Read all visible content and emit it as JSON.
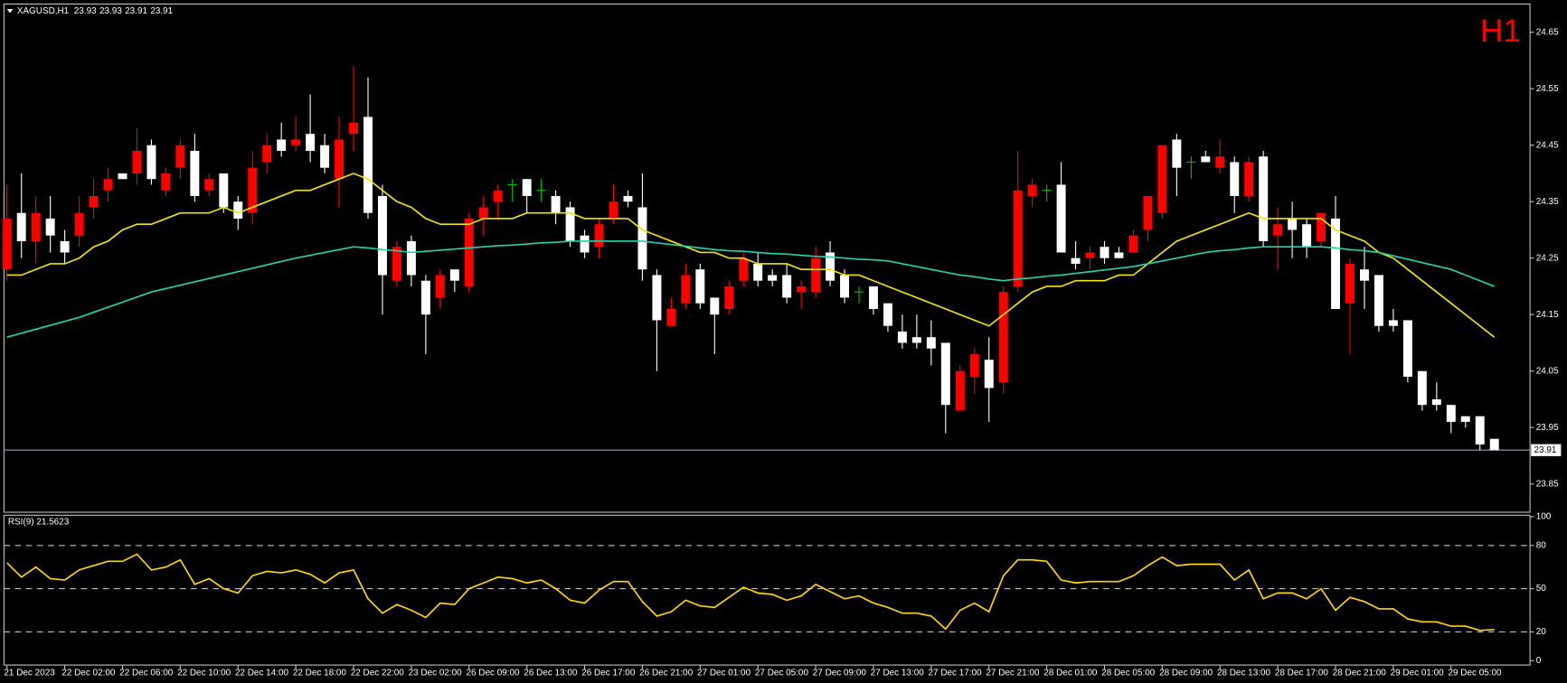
{
  "chart_data": [
    {
      "type": "candlestick",
      "title": "XAGUSD,H1",
      "timeframe": "H1",
      "header_ohlc": [
        23.93,
        23.93,
        23.91,
        23.91
      ],
      "categories": [
        "21 Dec 2023",
        null,
        null,
        null,
        "22 Dec 02:00",
        null,
        null,
        null,
        "22 Dec 06:00",
        null,
        null,
        null,
        "22 Dec 10:00",
        null,
        null,
        null,
        "22 Dec 14:00",
        null,
        null,
        null,
        "22 Dec 18:00",
        null,
        null,
        null,
        "22 Dec 22:00",
        null,
        null,
        null,
        "23 Dec 02:00",
        null,
        null,
        null,
        "26 Dec 09:00",
        null,
        null,
        null,
        "26 Dec 13:00",
        null,
        null,
        null,
        "26 Dec 17:00",
        null,
        null,
        null,
        "26 Dec 21:00",
        null,
        null,
        null,
        "27 Dec 01:00",
        null,
        null,
        null,
        "27 Dec 05:00",
        null,
        null,
        null,
        "27 Dec 09:00",
        null,
        null,
        null,
        "27 Dec 13:00",
        null,
        null,
        null,
        "27 Dec 17:00",
        null,
        null,
        null,
        "27 Dec 21:00",
        null,
        null,
        null,
        "28 Dec 01:00",
        null,
        null,
        null,
        "28 Dec 05:00",
        null,
        null,
        null,
        "28 Dec 09:00",
        null,
        null,
        null,
        "28 Dec 13:00",
        null,
        null,
        null,
        "28 Dec 17:00",
        null,
        null,
        null,
        "28 Dec 21:00",
        null,
        null,
        null,
        "29 Dec 01:00",
        null,
        null,
        null,
        "29 Dec 05:00",
        null,
        null,
        null
      ],
      "open": [
        24.23,
        24.33,
        24.28,
        24.32,
        24.28,
        24.29,
        24.34,
        24.37,
        24.4,
        24.4,
        24.45,
        24.37,
        24.41,
        24.44,
        24.37,
        24.4,
        24.35,
        24.33,
        24.42,
        24.46,
        24.45,
        24.47,
        24.45,
        24.39,
        24.47,
        24.5,
        24.36,
        24.21,
        24.28,
        24.21,
        24.18,
        24.23,
        24.2,
        24.32,
        24.35,
        24.38,
        24.39,
        24.37,
        24.36,
        24.34,
        24.29,
        24.27,
        24.32,
        24.36,
        24.34,
        24.22,
        24.13,
        24.17,
        24.23,
        24.18,
        24.16,
        24.21,
        24.24,
        24.22,
        24.22,
        24.19,
        24.19,
        24.26,
        24.22,
        24.19,
        24.2,
        24.17,
        24.12,
        24.11,
        24.11,
        24.1,
        23.98,
        24.04,
        24.07,
        24.03,
        24.2,
        24.36,
        24.37,
        24.38,
        24.25,
        24.25,
        24.27,
        24.26,
        24.26,
        24.3,
        24.33,
        24.46,
        24.42,
        24.43,
        24.41,
        24.42,
        24.36,
        24.43,
        24.29,
        24.32,
        24.31,
        24.28,
        24.32,
        24.17,
        24.23,
        24.22,
        24.14,
        24.14,
        24.05,
        24.0,
        23.99,
        23.97,
        23.97,
        23.93
      ],
      "high": [
        24.38,
        24.4,
        24.36,
        24.36,
        24.3,
        24.36,
        24.39,
        24.41,
        24.4,
        24.48,
        24.46,
        24.41,
        24.46,
        24.47,
        24.4,
        24.4,
        24.36,
        24.44,
        24.47,
        24.49,
        24.5,
        24.54,
        24.47,
        24.5,
        24.59,
        24.57,
        24.38,
        24.28,
        24.29,
        24.22,
        24.23,
        24.23,
        24.33,
        24.36,
        24.38,
        24.39,
        24.39,
        24.39,
        24.37,
        24.35,
        24.3,
        24.32,
        24.38,
        24.37,
        24.4,
        24.23,
        24.18,
        24.24,
        24.24,
        24.18,
        24.21,
        24.26,
        24.26,
        24.23,
        24.24,
        24.21,
        24.27,
        24.28,
        24.23,
        24.2,
        24.2,
        24.17,
        24.15,
        24.15,
        24.14,
        24.1,
        24.06,
        24.09,
        24.11,
        24.2,
        24.44,
        24.39,
        24.38,
        24.42,
        24.28,
        24.27,
        24.28,
        24.27,
        24.3,
        24.36,
        24.45,
        24.47,
        24.43,
        24.44,
        24.46,
        24.43,
        24.43,
        24.44,
        24.34,
        24.35,
        24.32,
        24.33,
        24.36,
        24.25,
        24.27,
        24.22,
        24.16,
        24.14,
        24.05,
        24.03,
        23.99,
        23.97,
        23.97,
        23.93
      ],
      "low": [
        24.21,
        24.25,
        24.24,
        24.26,
        24.24,
        24.27,
        24.32,
        24.35,
        24.39,
        24.38,
        24.38,
        24.36,
        24.39,
        24.35,
        24.36,
        24.33,
        24.3,
        24.31,
        24.4,
        24.43,
        24.44,
        24.42,
        24.4,
        24.34,
        24.44,
        24.32,
        24.15,
        24.2,
        24.2,
        24.08,
        24.16,
        24.19,
        24.19,
        24.29,
        24.32,
        24.35,
        24.33,
        24.35,
        24.31,
        24.27,
        24.25,
        24.25,
        24.31,
        24.34,
        24.21,
        24.05,
        24.13,
        24.16,
        24.16,
        24.08,
        24.15,
        24.2,
        24.2,
        24.2,
        24.17,
        24.16,
        24.18,
        24.2,
        24.17,
        24.17,
        24.15,
        24.12,
        24.09,
        24.09,
        24.06,
        23.94,
        23.98,
        24.01,
        23.96,
        24.01,
        24.19,
        24.34,
        24.35,
        24.26,
        24.23,
        24.23,
        24.24,
        24.25,
        24.26,
        24.28,
        24.32,
        24.36,
        24.39,
        24.42,
        24.4,
        24.33,
        24.35,
        24.27,
        24.23,
        24.25,
        24.25,
        24.27,
        24.16,
        24.08,
        24.16,
        24.12,
        24.12,
        24.03,
        23.98,
        23.98,
        23.94,
        23.95,
        23.91,
        23.91
      ],
      "close": [
        24.32,
        24.28,
        24.33,
        24.29,
        24.26,
        24.33,
        24.36,
        24.39,
        24.39,
        24.44,
        24.39,
        24.4,
        24.45,
        24.36,
        24.39,
        24.34,
        24.32,
        24.41,
        24.45,
        24.44,
        24.46,
        24.44,
        24.41,
        24.46,
        24.49,
        24.33,
        24.22,
        24.27,
        24.22,
        24.15,
        24.22,
        24.21,
        24.32,
        24.34,
        24.37,
        24.38,
        24.36,
        24.37,
        24.33,
        24.28,
        24.26,
        24.31,
        24.35,
        24.35,
        24.23,
        24.14,
        24.16,
        24.22,
        24.17,
        24.15,
        24.2,
        24.25,
        24.21,
        24.21,
        24.18,
        24.2,
        24.25,
        24.21,
        24.18,
        24.19,
        24.16,
        24.13,
        24.1,
        24.1,
        24.09,
        23.99,
        24.05,
        24.08,
        24.02,
        24.19,
        24.37,
        24.38,
        24.37,
        24.26,
        24.24,
        24.26,
        24.25,
        24.25,
        24.29,
        24.36,
        24.45,
        24.41,
        24.42,
        24.42,
        24.43,
        24.36,
        24.42,
        24.28,
        24.31,
        24.3,
        24.27,
        24.33,
        24.16,
        24.24,
        24.21,
        24.13,
        24.13,
        24.04,
        23.99,
        23.99,
        23.96,
        23.96,
        23.92,
        23.91
      ],
      "colors": {
        "up": "#ff0000",
        "down": "#ffffff",
        "doji": "#00c000",
        "price_line": "#8fa3ad",
        "timeframe": "#ff0000"
      },
      "overlays": [
        {
          "color": "#f2e600",
          "values": [
            24.22,
            24.22,
            24.23,
            24.24,
            24.24,
            24.25,
            24.27,
            24.28,
            24.3,
            24.31,
            24.31,
            24.32,
            24.33,
            24.33,
            24.33,
            24.34,
            24.33,
            24.34,
            24.35,
            24.36,
            24.37,
            24.37,
            24.38,
            24.39,
            24.4,
            24.39,
            24.37,
            24.35,
            24.34,
            24.32,
            24.31,
            24.31,
            24.31,
            24.32,
            24.32,
            24.32,
            24.33,
            24.33,
            24.33,
            24.33,
            24.32,
            24.32,
            24.32,
            24.32,
            24.3,
            24.29,
            24.28,
            24.27,
            24.26,
            24.26,
            24.25,
            24.25,
            24.24,
            24.24,
            24.24,
            24.23,
            24.23,
            24.23,
            24.22,
            24.22,
            24.21,
            24.2,
            24.19,
            24.18,
            24.17,
            24.16,
            24.15,
            24.14,
            24.13,
            24.15,
            24.17,
            24.19,
            24.2,
            24.2,
            24.21,
            24.21,
            24.21,
            24.22,
            24.22,
            24.24,
            24.26,
            24.28,
            24.29,
            24.3,
            24.31,
            24.32,
            24.33,
            24.32,
            24.32,
            24.32,
            24.32,
            24.32,
            24.3,
            24.29,
            24.28,
            24.26,
            24.25,
            24.23,
            24.21,
            24.19,
            24.17,
            24.15,
            24.13,
            24.11
          ]
        },
        {
          "color": "#22d4a8",
          "values": [
            24.11,
            24.117,
            24.124,
            24.131,
            24.138,
            24.145,
            24.154,
            24.163,
            24.172,
            24.181,
            24.19,
            24.196,
            24.202,
            24.208,
            24.214,
            24.22,
            24.226,
            24.232,
            24.238,
            24.244,
            24.25,
            24.255,
            24.26,
            24.265,
            24.27,
            24.268,
            24.265,
            24.263,
            24.26,
            24.262,
            24.264,
            24.266,
            24.268,
            24.27,
            24.272,
            24.273,
            24.275,
            24.277,
            24.278,
            24.28,
            24.28,
            24.28,
            24.28,
            24.28,
            24.28,
            24.277,
            24.274,
            24.271,
            24.268,
            24.265,
            24.263,
            24.262,
            24.26,
            24.258,
            24.257,
            24.255,
            24.253,
            24.252,
            24.25,
            24.248,
            24.247,
            24.245,
            24.24,
            24.235,
            24.23,
            24.225,
            24.22,
            24.217,
            24.213,
            24.21,
            24.213,
            24.215,
            24.218,
            24.22,
            24.223,
            24.226,
            24.229,
            24.232,
            24.235,
            24.24,
            24.245,
            24.25,
            24.255,
            24.26,
            24.263,
            24.265,
            24.268,
            24.27,
            24.27,
            24.27,
            24.27,
            24.27,
            24.268,
            24.265,
            24.263,
            24.26,
            24.254,
            24.248,
            24.242,
            24.236,
            24.23,
            24.22,
            24.21,
            24.2
          ]
        }
      ],
      "last_price": 23.91,
      "ylim": [
        23.8,
        24.7
      ],
      "yticks": [
        24.65,
        24.55,
        24.45,
        24.35,
        24.25,
        24.15,
        24.05,
        23.95,
        23.85
      ]
    },
    {
      "type": "line",
      "title": "RSI(9) 21.5623",
      "color": "#ffd700",
      "values": [
        68,
        58,
        65,
        57,
        56,
        63,
        66,
        69,
        69,
        74,
        63,
        65,
        70,
        53,
        57,
        50,
        47,
        59,
        62,
        61,
        63,
        60,
        54,
        61,
        63,
        43,
        33,
        39,
        35,
        30,
        40,
        39,
        50,
        54,
        58,
        57,
        54,
        56,
        50,
        42,
        40,
        49,
        55,
        55,
        41,
        31,
        34,
        42,
        38,
        37,
        44,
        51,
        47,
        46,
        42,
        45,
        53,
        48,
        43,
        45,
        40,
        37,
        33,
        33,
        31,
        22,
        35,
        40,
        34,
        59,
        70,
        70,
        69,
        56,
        54,
        55,
        55,
        55,
        59,
        66,
        72,
        66,
        67,
        67,
        67,
        56,
        63,
        43,
        47,
        47,
        43,
        50,
        35,
        44,
        41,
        36,
        36,
        29,
        27,
        27,
        24,
        24,
        21,
        21.5623
      ],
      "levels": [
        80,
        50,
        20
      ],
      "ylim": [
        -3,
        101
      ],
      "yticks": [
        100,
        80,
        50,
        20,
        0
      ]
    }
  ]
}
